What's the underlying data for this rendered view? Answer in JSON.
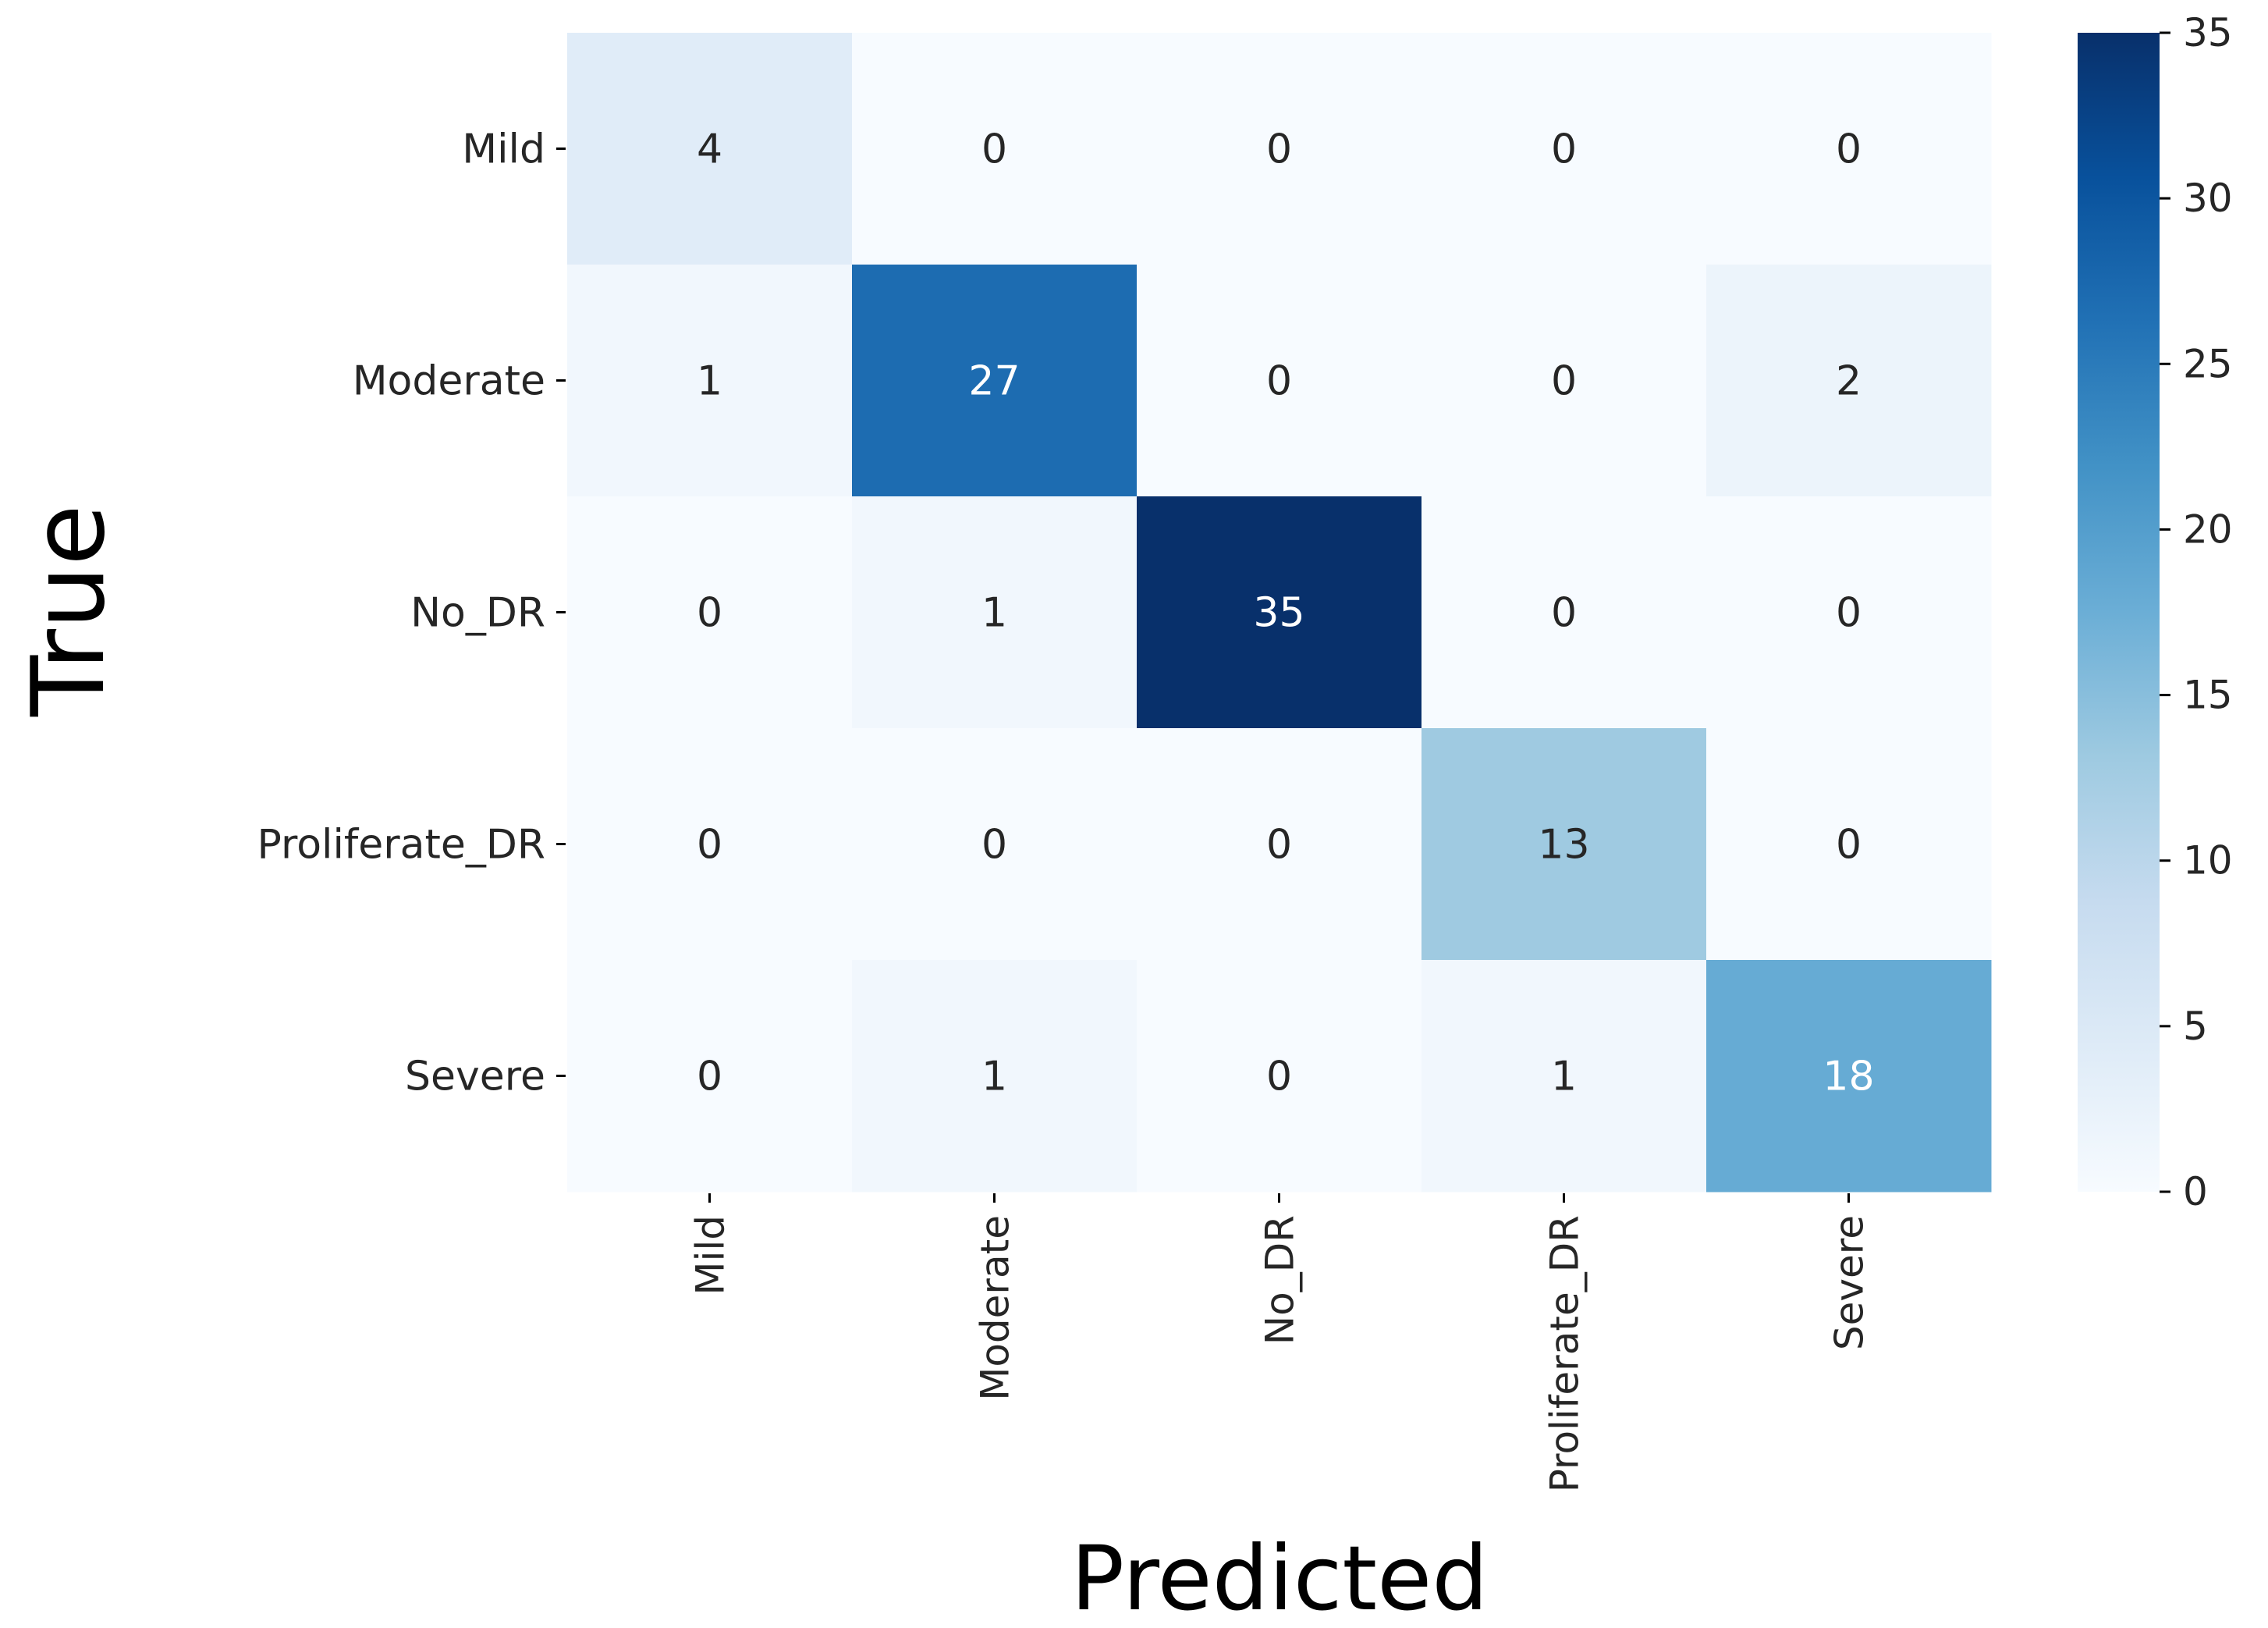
{
  "chart_data": {
    "type": "heatmap",
    "title": "",
    "xlabel": "Predicted",
    "ylabel": "True",
    "x_categories": [
      "Mild",
      "Moderate",
      "No_DR",
      "Proliferate_DR",
      "Severe"
    ],
    "y_categories": [
      "Mild",
      "Moderate",
      "No_DR",
      "Proliferate_DR",
      "Severe"
    ],
    "values": [
      [
        4,
        0,
        0,
        0,
        0
      ],
      [
        1,
        27,
        0,
        0,
        2
      ],
      [
        0,
        1,
        35,
        0,
        0
      ],
      [
        0,
        0,
        0,
        13,
        0
      ],
      [
        0,
        1,
        0,
        1,
        18
      ]
    ],
    "colormap": "Blues",
    "colorbar": {
      "range": [
        0,
        35
      ],
      "ticks": [
        0,
        5,
        10,
        15,
        20,
        25,
        30,
        35
      ]
    },
    "colors": {
      "low": "#f7fbff",
      "high": "#08306b",
      "text_dark": "#262626",
      "text_light": "#ffffff"
    }
  }
}
